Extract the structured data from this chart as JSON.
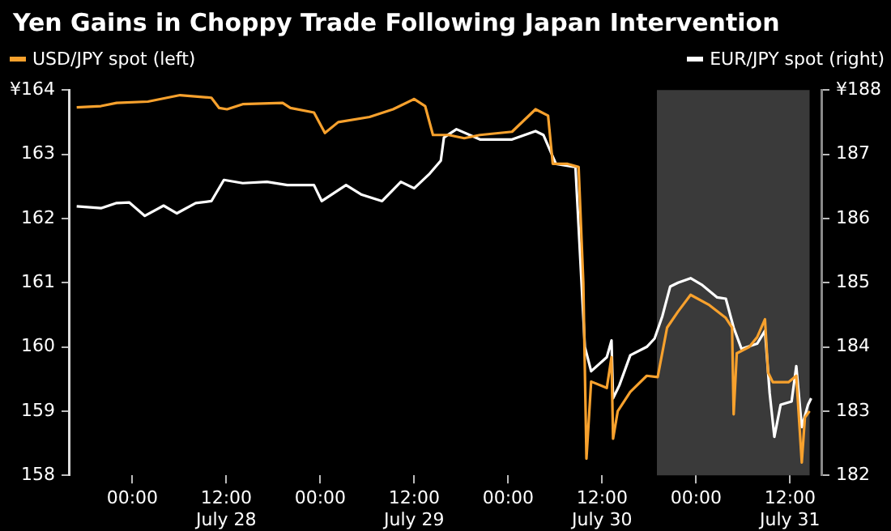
{
  "chart_data": {
    "type": "line",
    "title": "Yen Gains in Choppy Trade Following Japan Intervention",
    "legend": "top",
    "grid": false,
    "marker": "none",
    "line_style": "solid",
    "xlim": [
      "--07-27T16:00",
      "--07-31T16:00"
    ],
    "xticks": [
      {
        "value": "--07-28T00:00",
        "label": "00:00"
      },
      {
        "value": "--07-28T12:00",
        "label": "12:00\nJuly 28"
      },
      {
        "value": "--07-29T00:00",
        "label": "00:00"
      },
      {
        "value": "--07-29T12:00",
        "label": "12:00\nJuly 29"
      },
      {
        "value": "--07-30T00:00",
        "label": "00:00"
      },
      {
        "value": "--07-30T12:00",
        "label": "12:00\nJuly 30"
      },
      {
        "value": "--07-31T00:00",
        "label": "00:00"
      },
      {
        "value": "--07-31T12:00",
        "label": "12:00\nJuly 31"
      }
    ],
    "ylim": [
      158,
      164
    ],
    "yticks": [
      158,
      159,
      160,
      161,
      162,
      163,
      {
        "value": 164,
        "label": "¥164"
      }
    ],
    "y2lim": [
      182,
      188
    ],
    "y2ticks": [
      182,
      183,
      184,
      185,
      186,
      187,
      {
        "value": 188,
        "label": "¥188"
      }
    ],
    "bands": [
      {
        "axis": "x",
        "from": "--07-30T19:00",
        "to": "--07-31T14:30",
        "color": "#3a3a3a"
      }
    ],
    "series": [
      {
        "name": "USD/JPY spot (left)",
        "color": "#f7a12d",
        "x": [
          "--07-27T16:54",
          "--07-27T20:00",
          "--07-27T22:00",
          "--07-28T02:00",
          "--07-28T06:06",
          "--07-28T10:06",
          "--07-28T11:06",
          "--07-28T12:06",
          "--07-28T14:06",
          "--07-28T19:12",
          "--07-28T20:12",
          "--07-28T23:12",
          "--07-29T00:36",
          "--07-29T02:18",
          "--07-29T06:18",
          "--07-29T09:18",
          "--07-29T12:00",
          "--07-29T13:24",
          "--07-29T14:24",
          "--07-29T16:24",
          "--07-29T18:24",
          "--07-29T20:24",
          "--07-30T00:30",
          "--07-30T03:30",
          "--07-30T05:06",
          "--07-30T05:42",
          "--07-30T07:36",
          "--07-30T09:00",
          "--07-30T09:36",
          "--07-30T10:00",
          "--07-30T10:36",
          "--07-30T12:36",
          "--07-30T13:12",
          "--07-30T13:24",
          "--07-30T14:00",
          "--07-30T15:36",
          "--07-30T17:42",
          "--07-30T19:06",
          "--07-30T20:18",
          "--07-30T21:42",
          "--07-30T23:18",
          "--07-31T01:42",
          "--07-31T03:48",
          "--07-31T04:36",
          "--07-31T04:48",
          "--07-31T05:12",
          "--07-31T06:48",
          "--07-31T07:48",
          "--07-31T08:48",
          "--07-31T09:12",
          "--07-31T09:48",
          "--07-31T11:48",
          "--07-31T12:48",
          "--07-31T13:30",
          "--07-31T13:54",
          "--07-31T14:30"
        ],
        "values": [
          163.73,
          163.75,
          163.8,
          163.82,
          163.92,
          163.88,
          163.72,
          163.7,
          163.78,
          163.8,
          163.72,
          163.65,
          163.33,
          163.5,
          163.58,
          163.7,
          163.86,
          163.75,
          163.3,
          163.3,
          163.25,
          163.3,
          163.35,
          163.7,
          163.6,
          162.85,
          162.85,
          162.8,
          161.0,
          158.26,
          159.46,
          159.36,
          159.84,
          158.57,
          159.0,
          159.3,
          159.55,
          159.53,
          160.3,
          160.55,
          160.81,
          160.65,
          160.45,
          160.3,
          158.95,
          159.9,
          160.0,
          160.15,
          160.43,
          159.6,
          159.45,
          159.45,
          159.55,
          158.2,
          158.9,
          159.0
        ]
      },
      {
        "name": "EUR/JPY spot (right)",
        "color": "#ffffff",
        "axis": "y2",
        "x": [
          "--07-27T16:54",
          "--07-27T20:00",
          "--07-27T22:00",
          "--07-27T23:36",
          "--07-28T01:36",
          "--07-28T04:00",
          "--07-28T05:42",
          "--07-28T08:06",
          "--07-28T10:06",
          "--07-28T11:42",
          "--07-28T14:06",
          "--07-28T17:12",
          "--07-28T19:48",
          "--07-28T23:12",
          "--07-29T00:12",
          "--07-29T03:18",
          "--07-29T05:18",
          "--07-29T07:54",
          "--07-29T10:18",
          "--07-29T12:00",
          "--07-29T14:00",
          "--07-29T15:24",
          "--07-29T15:48",
          "--07-29T17:24",
          "--07-29T20:24",
          "--07-30T00:30",
          "--07-30T03:30",
          "--07-30T04:30",
          "--07-30T06:06",
          "--07-30T08:36",
          "--07-30T09:48",
          "--07-30T10:36",
          "--07-30T12:36",
          "--07-30T13:12",
          "--07-30T13:24",
          "--07-30T14:12",
          "--07-30T15:36",
          "--07-30T17:42",
          "--07-30T18:42",
          "--07-30T19:42",
          "--07-30T20:42",
          "--07-30T21:42",
          "--07-30T23:18",
          "--07-31T00:42",
          "--07-31T02:42",
          "--07-31T03:48",
          "--07-31T04:48",
          "--07-31T05:48",
          "--07-31T07:48",
          "--07-31T08:48",
          "--07-31T09:24",
          "--07-31T10:00",
          "--07-31T10:48",
          "--07-31T12:12",
          "--07-31T12:48",
          "--07-31T13:30",
          "--07-31T14:18",
          "--07-31T14:42"
        ],
        "values": [
          186.19,
          186.16,
          186.24,
          186.25,
          186.04,
          186.2,
          186.08,
          186.24,
          186.27,
          186.6,
          186.55,
          186.57,
          186.52,
          186.52,
          186.27,
          186.52,
          186.37,
          186.27,
          186.57,
          186.47,
          186.7,
          186.9,
          187.26,
          187.39,
          187.23,
          187.23,
          187.36,
          187.3,
          186.85,
          186.8,
          184.0,
          183.62,
          183.84,
          184.1,
          183.2,
          183.4,
          183.87,
          184.0,
          184.13,
          184.48,
          184.94,
          185.0,
          185.07,
          184.97,
          184.77,
          184.75,
          184.3,
          183.97,
          184.05,
          184.25,
          183.28,
          182.6,
          183.1,
          183.15,
          183.7,
          182.75,
          183.1,
          183.2
        ]
      }
    ]
  }
}
